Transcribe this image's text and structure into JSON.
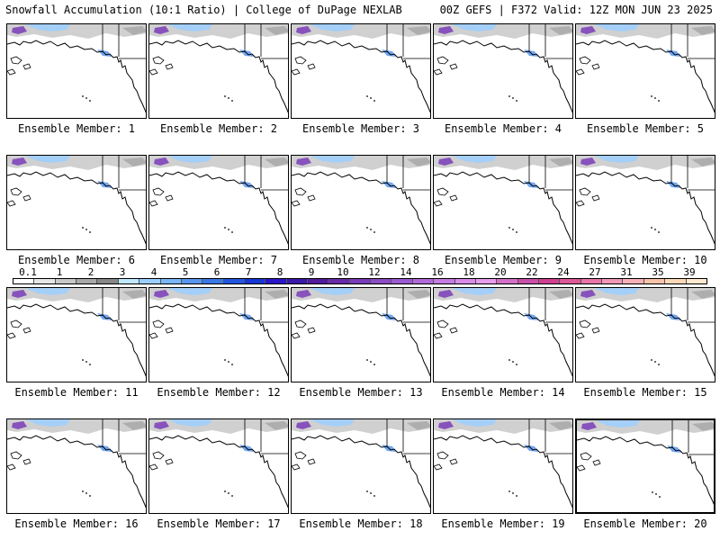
{
  "header": {
    "left": "Snowfall Accumulation (10:1 Ratio) | College of DuPage NEXLAB",
    "right": "00Z GEFS | F372 Valid: 12Z MON JUN 23 2025"
  },
  "panels": [
    {
      "label": "Ensemble Member: 1"
    },
    {
      "label": "Ensemble Member: 2"
    },
    {
      "label": "Ensemble Member: 3"
    },
    {
      "label": "Ensemble Member: 4"
    },
    {
      "label": "Ensemble Member: 5"
    },
    {
      "label": "Ensemble Member: 6"
    },
    {
      "label": "Ensemble Member: 7"
    },
    {
      "label": "Ensemble Member: 8"
    },
    {
      "label": "Ensemble Member: 9"
    },
    {
      "label": "Ensemble Member: 10"
    },
    {
      "label": "Ensemble Member: 11"
    },
    {
      "label": "Ensemble Member: 12"
    },
    {
      "label": "Ensemble Member: 13"
    },
    {
      "label": "Ensemble Member: 14"
    },
    {
      "label": "Ensemble Member: 15"
    },
    {
      "label": "Ensemble Member: 16"
    },
    {
      "label": "Ensemble Member: 17"
    },
    {
      "label": "Ensemble Member: 18"
    },
    {
      "label": "Ensemble Member: 19"
    },
    {
      "label": "Ensemble Member: 20"
    }
  ],
  "colorbar": {
    "labels": [
      "0.1",
      "1",
      "2",
      "3",
      "4",
      "5",
      "6",
      "7",
      "8",
      "9",
      "10",
      "12",
      "14",
      "16",
      "18",
      "20",
      "22",
      "24",
      "27",
      "31",
      "35",
      "39"
    ],
    "colors": [
      "#ffffff",
      "#e6e6e6",
      "#c8c8c8",
      "#a8a8a8",
      "#888888",
      "#bfe8ff",
      "#9ccfff",
      "#7ab6f5",
      "#5896ee",
      "#3b78e6",
      "#2455e0",
      "#1637d6",
      "#2a16c8",
      "#3a18a8",
      "#521a9c",
      "#6a2aa8",
      "#7a3cb8",
      "#8c4cc4",
      "#9c5ad0",
      "#b06ad8",
      "#c47ce0",
      "#d88ce8",
      "#e89cec",
      "#d470c8",
      "#c850a8",
      "#d04090",
      "#dc5898",
      "#e874a8",
      "#f098b8",
      "#f8b0b8",
      "#f8c4a8",
      "#fcd8b8",
      "#fde8d0"
    ]
  }
}
